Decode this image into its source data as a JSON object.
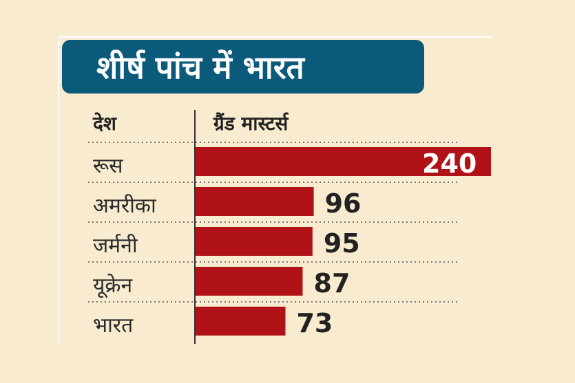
{
  "title": "शीर्ष पांच में भारत",
  "colors": {
    "background": "#f8ebcf",
    "title_bg": "#0b5a7a",
    "bar": "#b01218",
    "text": "#222222",
    "value_inside": "#ffffff",
    "value_outside": "#222222",
    "divider": "#777777"
  },
  "chart_data": {
    "type": "bar",
    "orientation": "horizontal",
    "title": "शीर्ष पांच में भारत",
    "column_headers": {
      "category": "देश",
      "value": "ग्रैंड मास्टर्स"
    },
    "categories": [
      "रूस",
      "अमरीका",
      "जर्मनी",
      "यूक्रेन",
      "भारत"
    ],
    "values": [
      240,
      96,
      95,
      87,
      73
    ],
    "value_labels": [
      "240",
      "96",
      "95",
      "87",
      "73"
    ],
    "grid": false,
    "legend": "none"
  }
}
